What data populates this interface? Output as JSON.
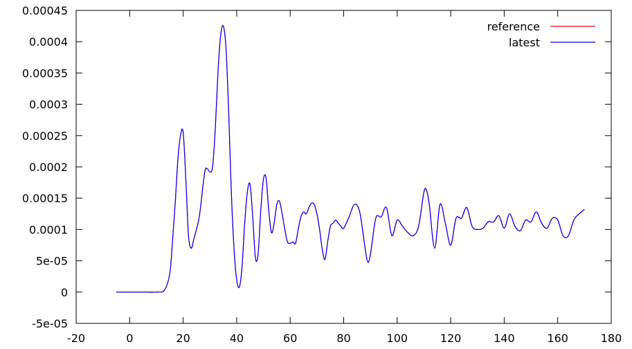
{
  "chart_data": {
    "type": "line",
    "title": "",
    "xlabel": "",
    "ylabel": "",
    "xlim": [
      -20,
      180
    ],
    "ylim": [
      -5e-05,
      0.00045
    ],
    "xticks": [
      -20,
      0,
      20,
      40,
      60,
      80,
      100,
      120,
      140,
      160,
      180
    ],
    "xtick_labels": [
      "-20",
      "0",
      "20",
      "40",
      "60",
      "80",
      "100",
      "120",
      "140",
      "160",
      "180"
    ],
    "yticks": [
      -5e-05,
      0,
      5e-05,
      0.0001,
      0.00015,
      0.0002,
      0.00025,
      0.0003,
      0.00035,
      0.0004,
      0.00045
    ],
    "ytick_labels": [
      "-5e-05",
      "0",
      "5e-05",
      "0.0001",
      "0.00015",
      "0.0002",
      "0.00025",
      "0.0003",
      "0.00035",
      "0.0004",
      "0.00045"
    ],
    "grid": false,
    "legend_position": "top-right",
    "series": [
      {
        "name": "reference",
        "color": "#ff0000",
        "x": [
          -5,
          0,
          5,
          10,
          13,
          15,
          16,
          17,
          18,
          19,
          20,
          21,
          22,
          23,
          24,
          26,
          28,
          29,
          30,
          31,
          32,
          33,
          34,
          35,
          36,
          37,
          38,
          39,
          40,
          41,
          42,
          43,
          44,
          45,
          46,
          47,
          48,
          49,
          50,
          51,
          52,
          53,
          54,
          55,
          56,
          57,
          58,
          59,
          60,
          61,
          62,
          63,
          64,
          65,
          66,
          67,
          68,
          69,
          70,
          71,
          72,
          73,
          74,
          75,
          76,
          77,
          78,
          79,
          80,
          82,
          84,
          86,
          88,
          89,
          90,
          92,
          94,
          96,
          98,
          100,
          102,
          104,
          106,
          108,
          110,
          111,
          112,
          114,
          116,
          118,
          120,
          122,
          124,
          126,
          128,
          130,
          132,
          134,
          136,
          138,
          140,
          142,
          144,
          146,
          148,
          150,
          152,
          154,
          156,
          158,
          160,
          162,
          164,
          166,
          168,
          170
        ],
        "y": [
          0,
          0,
          0,
          0,
          3e-06,
          3e-05,
          8e-05,
          0.00014,
          0.00021,
          0.00025,
          0.000255,
          0.00018,
          9e-05,
          7e-05,
          8.5e-05,
          0.00012,
          0.00019,
          0.000197,
          0.000192,
          0.0002,
          0.00026,
          0.00035,
          0.00041,
          0.000425,
          0.00039,
          0.00029,
          0.00016,
          7e-05,
          2e-05,
          8e-06,
          4e-05,
          0.00011,
          0.00016,
          0.000172,
          0.00012,
          5.5e-05,
          6e-05,
          0.00013,
          0.00018,
          0.000182,
          0.00013,
          9.5e-05,
          0.00011,
          0.00014,
          0.000145,
          0.000125,
          0.0001,
          8e-05,
          7.8e-05,
          8e-05,
          7.8e-05,
          0.0001,
          0.00012,
          0.000128,
          0.000125,
          0.000135,
          0.000142,
          0.00014,
          0.000125,
          0.0001,
          6.8e-05,
          5.2e-05,
          8e-05,
          0.000105,
          0.00011,
          0.000115,
          0.00011,
          0.000105,
          0.000102,
          0.00012,
          0.00014,
          0.000128,
          7e-05,
          4.8e-05,
          6e-05,
          0.000118,
          0.00012,
          0.000135,
          9e-05,
          0.000115,
          0.000105,
          9.5e-05,
          9e-05,
          0.000105,
          0.00016,
          0.000162,
          0.00014,
          7e-05,
          0.00014,
          0.00011,
          7.5e-05,
          0.000118,
          0.000118,
          0.000135,
          0.000105,
          0.0001,
          0.000102,
          0.000112,
          0.000112,
          0.000122,
          0.000102,
          0.000125,
          0.000105,
          9.8e-05,
          0.000115,
          0.000112,
          0.000128,
          0.00011,
          0.000102,
          0.000118,
          0.000115,
          9e-05,
          9e-05,
          0.000115,
          0.000125,
          0.000132
        ]
      },
      {
        "name": "latest",
        "color": "#0000ff",
        "x": [
          -5,
          0,
          5,
          10,
          13,
          15,
          16,
          17,
          18,
          19,
          20,
          21,
          22,
          23,
          24,
          26,
          28,
          29,
          30,
          31,
          32,
          33,
          34,
          35,
          36,
          37,
          38,
          39,
          40,
          41,
          42,
          43,
          44,
          45,
          46,
          47,
          48,
          49,
          50,
          51,
          52,
          53,
          54,
          55,
          56,
          57,
          58,
          59,
          60,
          61,
          62,
          63,
          64,
          65,
          66,
          67,
          68,
          69,
          70,
          71,
          72,
          73,
          74,
          75,
          76,
          77,
          78,
          79,
          80,
          82,
          84,
          86,
          88,
          89,
          90,
          92,
          94,
          96,
          98,
          100,
          102,
          104,
          106,
          108,
          110,
          111,
          112,
          114,
          116,
          118,
          120,
          122,
          124,
          126,
          128,
          130,
          132,
          134,
          136,
          138,
          140,
          142,
          144,
          146,
          148,
          150,
          152,
          154,
          156,
          158,
          160,
          162,
          164,
          166,
          168,
          170
        ],
        "y": [
          0,
          0,
          0,
          0,
          3e-06,
          3e-05,
          8e-05,
          0.00014,
          0.00021,
          0.00025,
          0.000255,
          0.00018,
          9e-05,
          7e-05,
          8.5e-05,
          0.00012,
          0.00019,
          0.000197,
          0.000192,
          0.0002,
          0.00026,
          0.00035,
          0.00041,
          0.000425,
          0.00039,
          0.00029,
          0.00016,
          7e-05,
          2e-05,
          8e-06,
          4e-05,
          0.00011,
          0.00016,
          0.000172,
          0.00012,
          5.5e-05,
          6e-05,
          0.00013,
          0.00018,
          0.000182,
          0.00013,
          9.5e-05,
          0.00011,
          0.00014,
          0.000145,
          0.000125,
          0.0001,
          8e-05,
          7.8e-05,
          8e-05,
          7.8e-05,
          0.0001,
          0.00012,
          0.000128,
          0.000125,
          0.000135,
          0.000142,
          0.00014,
          0.000125,
          0.0001,
          6.8e-05,
          5.2e-05,
          8e-05,
          0.000105,
          0.00011,
          0.000115,
          0.00011,
          0.000105,
          0.000102,
          0.00012,
          0.00014,
          0.000128,
          7e-05,
          4.8e-05,
          6e-05,
          0.000118,
          0.00012,
          0.000135,
          9e-05,
          0.000115,
          0.000105,
          9.5e-05,
          9e-05,
          0.000105,
          0.00016,
          0.000162,
          0.00014,
          7e-05,
          0.00014,
          0.00011,
          7.5e-05,
          0.000118,
          0.000118,
          0.000135,
          0.000105,
          0.0001,
          0.000102,
          0.000112,
          0.000112,
          0.000122,
          0.000102,
          0.000125,
          0.000105,
          9.8e-05,
          0.000115,
          0.000112,
          0.000128,
          0.00011,
          0.000102,
          0.000118,
          0.000115,
          9e-05,
          9e-05,
          0.000115,
          0.000125,
          0.000132
        ]
      }
    ]
  }
}
